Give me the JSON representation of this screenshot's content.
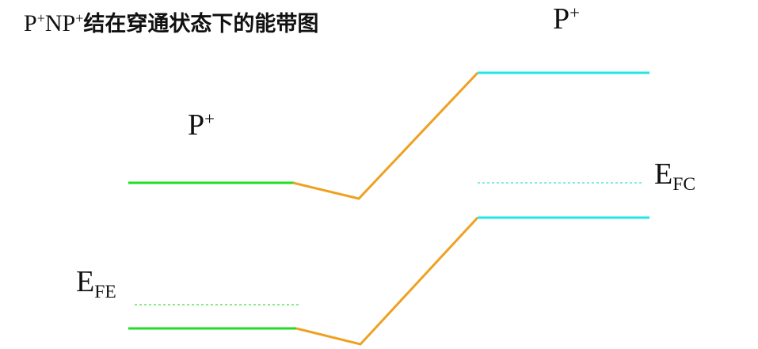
{
  "title": {
    "p1": "P",
    "sup1": "+",
    "n": "NP",
    "sup2": "+",
    "cjk": "结在穿通状态下的能带图"
  },
  "labels": {
    "right_region": {
      "main": "P",
      "sup": "+"
    },
    "left_region": {
      "main": "P",
      "sup": "+"
    },
    "efc": {
      "main": "E",
      "sub": "FC"
    },
    "efe": {
      "main": "E",
      "sub": "FE"
    }
  },
  "colors": {
    "emitter_band": "#22dd22",
    "collector_band": "#22e5e5",
    "base_band": "#f0a020",
    "emitter_fermi": "#44dd44",
    "collector_fermi": "#33dddd"
  }
}
